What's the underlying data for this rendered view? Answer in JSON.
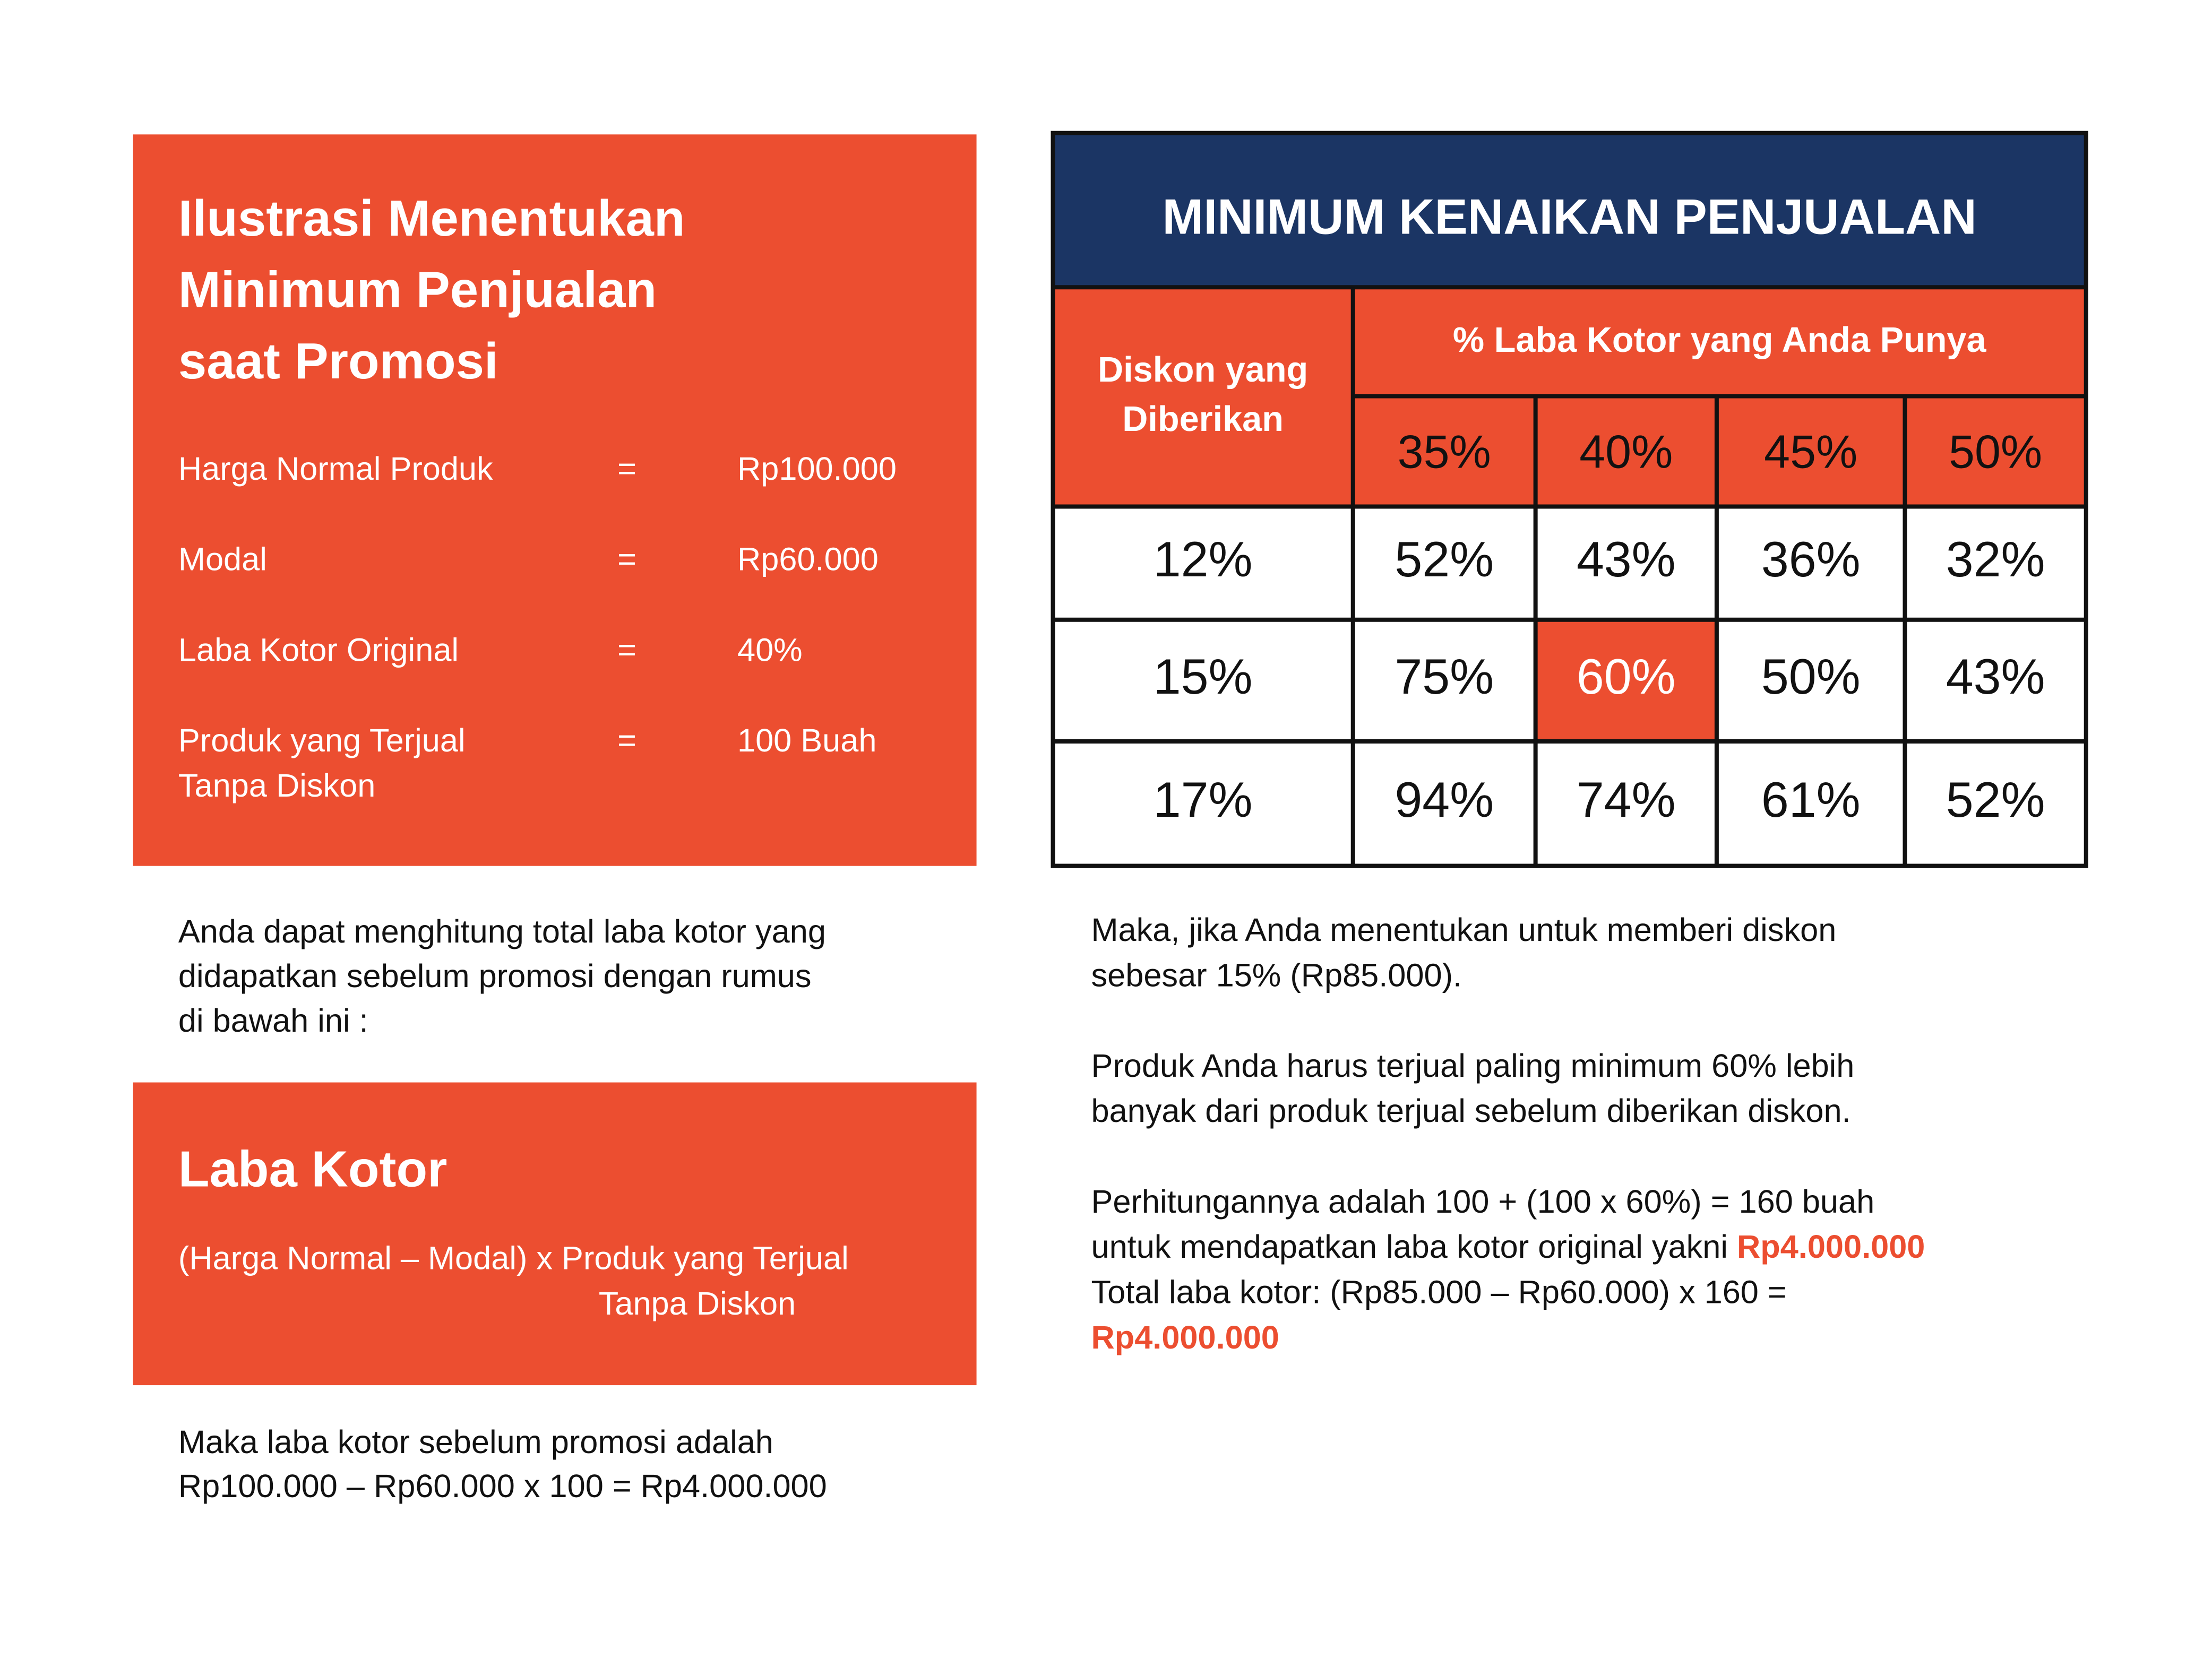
{
  "left_card": {
    "title": [
      "Ilustrasi Menentukan",
      "Minimum Penjualan",
      "saat Promosi"
    ],
    "rows": [
      {
        "label": [
          "Harga Normal Produk"
        ],
        "sign": "=",
        "value": "Rp100.000"
      },
      {
        "label": [
          "Modal"
        ],
        "sign": "=",
        "value": "Rp60.000"
      },
      {
        "label": [
          "Laba Kotor Original"
        ],
        "sign": "=",
        "value": "40%"
      },
      {
        "label": [
          "Produk yang Terjual",
          "Tanpa Diskon"
        ],
        "sign": "=",
        "value": "100 Buah"
      }
    ]
  },
  "intro_text": [
    "Anda dapat menghitung total laba kotor yang",
    "didapatkan sebelum promosi dengan rumus",
    "di bawah ini :"
  ],
  "formula_card": {
    "title": "Laba Kotor",
    "formula": [
      "(Harga Normal – Modal) x Produk yang Terjual",
      "Tanpa Diskon"
    ]
  },
  "result_text": [
    "Maka laba kotor sebelum promosi adalah",
    "Rp100.000 – Rp60.000 x 100 = Rp4.000.000"
  ],
  "table": {
    "title": "MINIMUM KENAIKAN PENJUALAN",
    "row_header": [
      "Diskon yang",
      "Diberikan"
    ],
    "column_header": "%  Laba Kotor yang Anda Punya",
    "columns": [
      "35%",
      "40%",
      "45%",
      "50%"
    ],
    "rows": [
      {
        "discount": "12%",
        "values": [
          "52%",
          "43%",
          "36%",
          "32%"
        ]
      },
      {
        "discount": "15%",
        "values": [
          "75%",
          "60%",
          "50%",
          "43%"
        ]
      },
      {
        "discount": "17%",
        "values": [
          "94%",
          "74%",
          "61%",
          "52%"
        ]
      }
    ],
    "highlight_cell": {
      "row": 1,
      "col": 1
    }
  },
  "explanation": [
    [
      [
        "Maka, jika Anda menentukan untuk memberi diskon"
      ],
      [
        "sebesar 15% (Rp85.000)."
      ]
    ],
    [
      [
        "Produk Anda harus terjual paling minimum 60% lebih"
      ],
      [
        "banyak dari produk terjual sebelum diberikan diskon."
      ]
    ],
    [
      [
        "Perhitungannya adalah 100 + (100 x 60%) = 160 buah"
      ],
      [
        "untuk mendapatkan laba kotor original yakni ",
        {
          "text": "Rp4.000.000",
          "color": "#ec4e30"
        }
      ],
      [
        "Total laba kotor: (Rp85.000 – Rp60.000) x 160 ="
      ],
      [
        {
          "text": "Rp4.000.000",
          "color": "#ec4e30"
        }
      ]
    ]
  ]
}
